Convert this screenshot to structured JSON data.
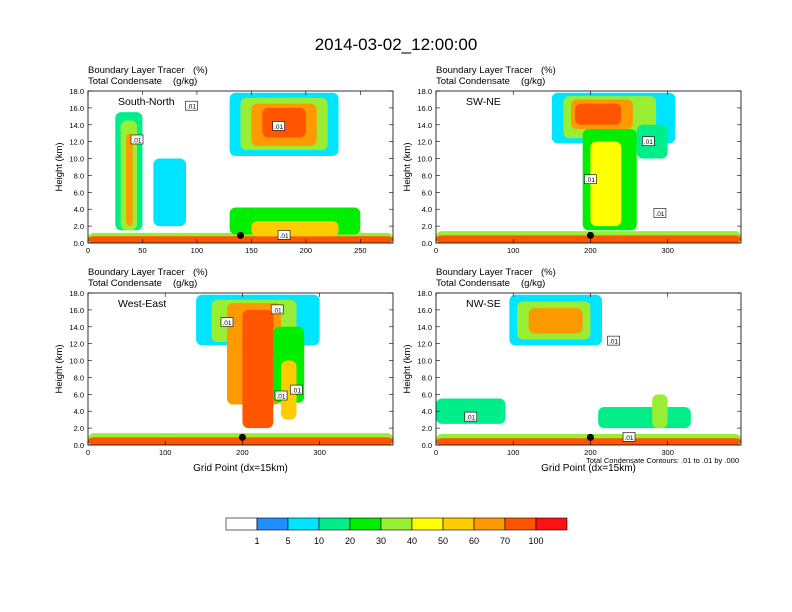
{
  "figure": {
    "title": "2014-03-02_12:00:00",
    "contour_note": "Total Condensate Contours: .01 to .01 by .000"
  },
  "colorbar": {
    "colors": [
      "#ffffff",
      "#1e90ff",
      "#00e5ff",
      "#00ee8a",
      "#00ee00",
      "#99ee33",
      "#ffff00",
      "#ffcc00",
      "#ff9900",
      "#ff5500",
      "#ff1111"
    ],
    "labels": [
      "1",
      "5",
      "10",
      "20",
      "30",
      "40",
      "50",
      "60",
      "70",
      "100"
    ]
  },
  "chart_data": [
    {
      "type": "heatmap",
      "label": "South-North",
      "subtitle_left_1": "Boundary Layer Tracer",
      "subtitle_unit_1": "(%)",
      "subtitle_left_2": "Total Condensate",
      "subtitle_unit_2": "(g/kg)",
      "xlabel": "",
      "ylabel": "Height (km)",
      "xlim": [
        0,
        280
      ],
      "ylim": [
        0,
        18
      ],
      "xticks": [
        0,
        50,
        100,
        150,
        200,
        250
      ],
      "yticks": [
        0,
        2,
        4,
        6,
        8,
        10,
        12,
        14,
        16,
        18
      ],
      "contour_labels": [
        {
          "x": 45,
          "y": 12.2,
          "text": ".01"
        },
        {
          "x": 95,
          "y": 16.2,
          "text": ".01"
        },
        {
          "x": 175,
          "y": 13.8,
          "text": ".01"
        },
        {
          "x": 180,
          "y": 0.9,
          "text": ".01"
        }
      ],
      "marker": {
        "x": 140,
        "y": 0.9
      }
    },
    {
      "type": "heatmap",
      "label": "SW-NE",
      "subtitle_left_1": "Boundary Layer Tracer",
      "subtitle_unit_1": "(%)",
      "subtitle_left_2": "Total Condensate",
      "subtitle_unit_2": "(g/kg)",
      "xlabel": "",
      "ylabel": "Height (km)",
      "xlim": [
        0,
        395
      ],
      "ylim": [
        0,
        18
      ],
      "xticks": [
        0,
        100,
        200,
        300
      ],
      "yticks": [
        0,
        2,
        4,
        6,
        8,
        10,
        12,
        14,
        16,
        18
      ],
      "contour_labels": [
        {
          "x": 275,
          "y": 12.0,
          "text": ".01"
        },
        {
          "x": 200,
          "y": 7.5,
          "text": ".01"
        },
        {
          "x": 290,
          "y": 3.5,
          "text": ".01"
        }
      ],
      "marker": {
        "x": 200,
        "y": 0.9
      }
    },
    {
      "type": "heatmap",
      "label": "West-East",
      "subtitle_left_1": "Boundary Layer Tracer",
      "subtitle_unit_1": "(%)",
      "subtitle_left_2": "Total Condensate",
      "subtitle_unit_2": "(g/kg)",
      "xlabel": "Grid Point (dx=15km)",
      "ylabel": "Height (km)",
      "xlim": [
        0,
        395
      ],
      "ylim": [
        0,
        18
      ],
      "xticks": [
        0,
        100,
        200,
        300
      ],
      "yticks": [
        0,
        2,
        4,
        6,
        8,
        10,
        12,
        14,
        16,
        18
      ],
      "contour_labels": [
        {
          "x": 180,
          "y": 14.5,
          "text": ".01"
        },
        {
          "x": 245,
          "y": 16.0,
          "text": ".01"
        },
        {
          "x": 270,
          "y": 6.5,
          "text": ".01"
        },
        {
          "x": 250,
          "y": 5.8,
          "text": ".01"
        }
      ],
      "marker": {
        "x": 200,
        "y": 0.9
      }
    },
    {
      "type": "heatmap",
      "label": "NW-SE",
      "subtitle_left_1": "Boundary Layer Tracer",
      "subtitle_unit_1": "(%)",
      "subtitle_left_2": "Total Condensate",
      "subtitle_unit_2": "(g/kg)",
      "xlabel": "Grid Point (dx=15km)",
      "ylabel": "Height (km)",
      "xlim": [
        0,
        395
      ],
      "ylim": [
        0,
        18
      ],
      "xticks": [
        0,
        100,
        200,
        300
      ],
      "yticks": [
        0,
        2,
        4,
        6,
        8,
        10,
        12,
        14,
        16,
        18
      ],
      "contour_labels": [
        {
          "x": 230,
          "y": 12.3,
          "text": ".01"
        },
        {
          "x": 45,
          "y": 3.3,
          "text": ".01"
        },
        {
          "x": 250,
          "y": 0.9,
          "text": ".01"
        }
      ],
      "marker": {
        "x": 200,
        "y": 0.9
      }
    }
  ]
}
